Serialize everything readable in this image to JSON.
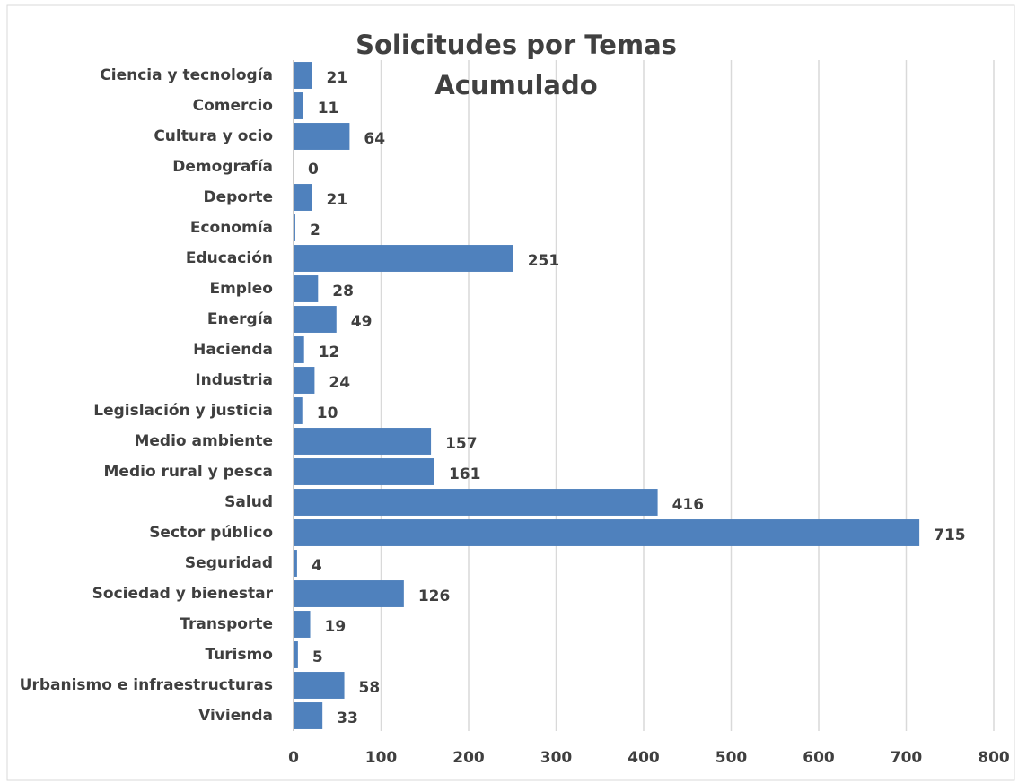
{
  "chart_data": {
    "type": "barh",
    "title": [
      "Solicitudes por Temas",
      "Acumulado"
    ],
    "categories": [
      "Ciencia y tecnología",
      "Comercio",
      "Cultura y ocio",
      "Demografía",
      "Deporte",
      "Economía",
      "Educación",
      "Empleo",
      "Energía",
      "Hacienda",
      "Industria",
      "Legislación y justicia",
      "Medio ambiente",
      "Medio rural y pesca",
      "Salud",
      "Sector público",
      "Seguridad",
      "Sociedad y bienestar",
      "Transporte",
      "Turismo",
      "Urbanismo e infraestructuras",
      "Vivienda"
    ],
    "values": [
      21,
      11,
      64,
      0,
      21,
      2,
      251,
      28,
      49,
      12,
      24,
      10,
      157,
      161,
      416,
      715,
      4,
      126,
      19,
      5,
      58,
      33
    ],
    "color": "#4f81bd",
    "xlim": [
      0,
      800
    ],
    "xticks": [
      0,
      100,
      200,
      300,
      400,
      500,
      600,
      700,
      800
    ],
    "grid": true
  }
}
